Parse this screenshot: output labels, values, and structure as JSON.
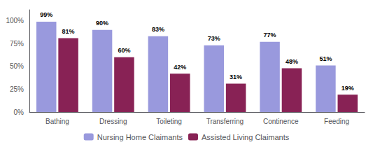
{
  "chart_data": {
    "type": "bar",
    "categories": [
      "Bathing",
      "Dressing",
      "Toileting",
      "Transferring",
      "Continence",
      "Feeding"
    ],
    "series": [
      {
        "name": "Nursing Home Claimants",
        "color": "#9999dd",
        "values": [
          99,
          90,
          83,
          73,
          77,
          51
        ],
        "value_labels": [
          "99%",
          "90%",
          "83%",
          "73%",
          "77%",
          "51%"
        ]
      },
      {
        "name": "Assisted Living Claimants",
        "color": "#882255",
        "values": [
          81,
          60,
          42,
          31,
          48,
          19
        ],
        "value_labels": [
          "81%",
          "60%",
          "42%",
          "31%",
          "48%",
          "19%"
        ]
      }
    ],
    "ylim": [
      0,
      112
    ],
    "yticks": [
      {
        "value": 0,
        "label": "0%"
      },
      {
        "value": 25,
        "label": "25%"
      },
      {
        "value": 50,
        "label": "50%"
      },
      {
        "value": 75,
        "label": "75%"
      },
      {
        "value": 100,
        "label": "100%"
      }
    ],
    "grid": false,
    "legend": "bottom",
    "data_labels": true
  }
}
